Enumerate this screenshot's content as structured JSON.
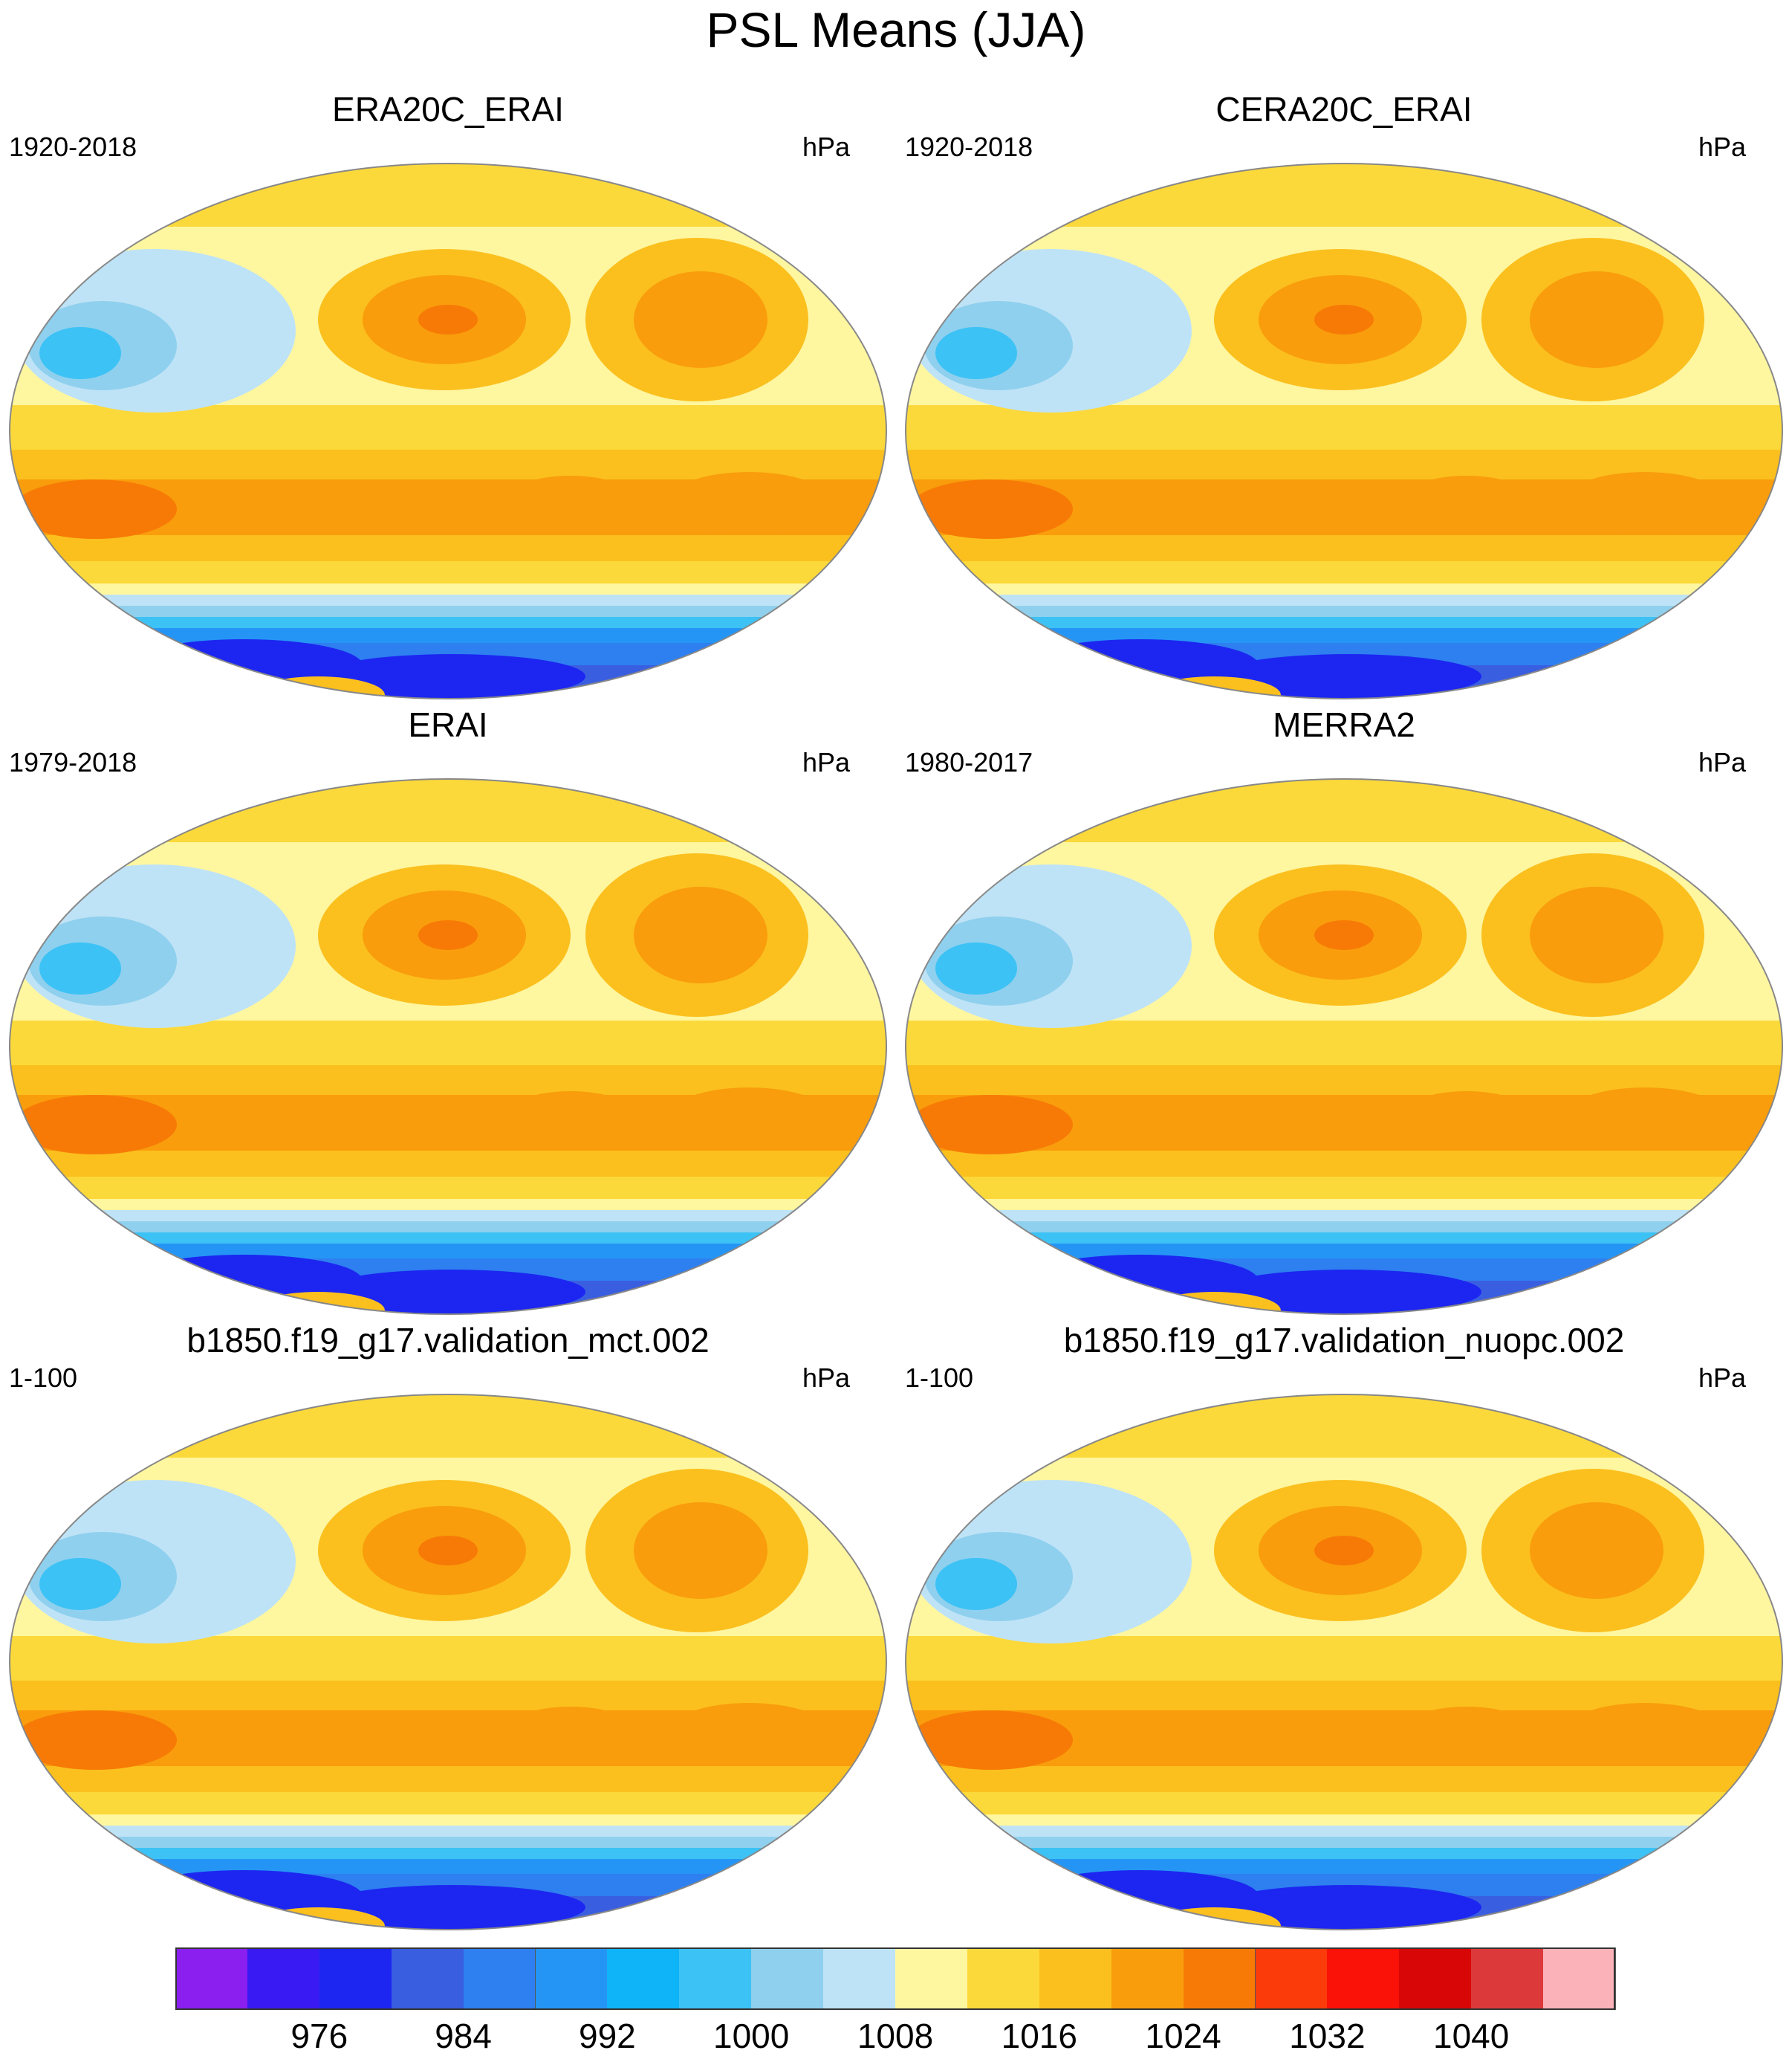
{
  "figure": {
    "title": "PSL Means (JJA)"
  },
  "panels": [
    {
      "title": "ERA20C_ERAI",
      "period": "1920-2018",
      "units": "hPa"
    },
    {
      "title": "CERA20C_ERAI",
      "period": "1920-2018",
      "units": "hPa"
    },
    {
      "title": "ERAI",
      "period": "1979-2018",
      "units": "hPa"
    },
    {
      "title": "MERRA2",
      "period": "1980-2017",
      "units": "hPa"
    },
    {
      "title": "b1850.f19_g17.validation_mct.002",
      "period": "1-100",
      "units": "hPa"
    },
    {
      "title": "b1850.f19_g17.validation_nuopc.002",
      "period": "1-100",
      "units": "hPa"
    }
  ],
  "colorbar": {
    "colors": [
      "#8a1ff0",
      "#3a1af2",
      "#1c26f0",
      "#3a5ee0",
      "#2e7ff0",
      "#2595f5",
      "#0fb3f7",
      "#3cc2f5",
      "#8fd0ee",
      "#bfe3f6",
      "#fff6a0",
      "#fcd93a",
      "#fbc01e",
      "#f99d0c",
      "#f77a06",
      "#fb3c0a",
      "#fa1208",
      "#d80606",
      "#dc3a3a",
      "#fbb2b8"
    ],
    "tick_labels": [
      "976",
      "984",
      "992",
      "1000",
      "1008",
      "1016",
      "1024",
      "1032",
      "1040"
    ],
    "units": "hPa"
  }
}
